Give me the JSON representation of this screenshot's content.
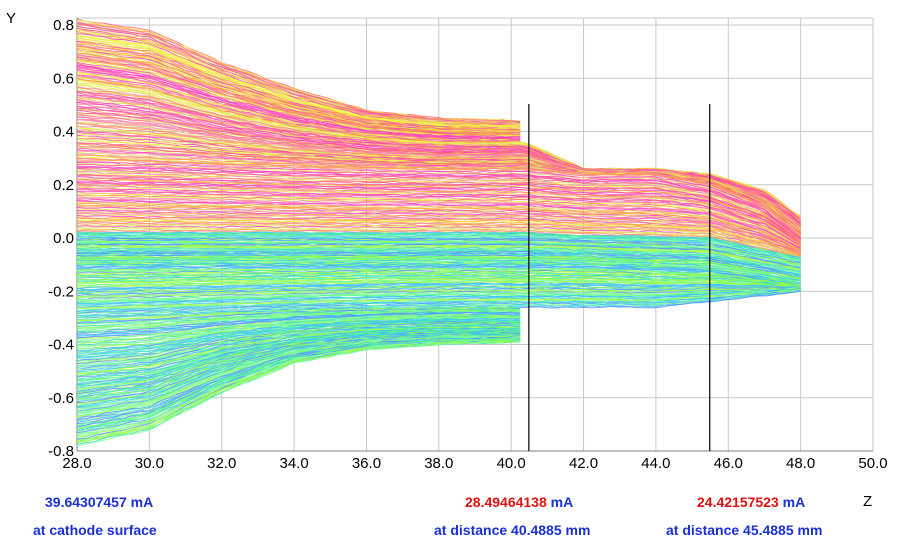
{
  "chart_data": {
    "type": "line",
    "title": "",
    "xlabel": "Z",
    "ylabel": "Y",
    "xlim": [
      28.0,
      50.0
    ],
    "ylim": [
      -0.8,
      0.85
    ],
    "grid": true,
    "x_ticks": [
      "28.0",
      "30.0",
      "32.0",
      "34.0",
      "36.0",
      "38.0",
      "40.0",
      "42.0",
      "44.0",
      "46.0",
      "48.0",
      "50.0"
    ],
    "y_ticks": [
      "-0.8",
      "-0.6",
      "-0.4",
      "-0.2",
      "0.0",
      "0.2",
      "0.4",
      "0.6",
      "0.8"
    ],
    "markers": [
      {
        "z": 40.4885
      },
      {
        "z": 45.4885
      }
    ],
    "trajectory_colors": {
      "upper": [
        "#f0f040",
        "#ffa040",
        "#ff6080",
        "#ff40c0",
        "#ff80a0",
        "#e0e060"
      ],
      "lower": [
        "#40e0c0",
        "#60ff80",
        "#a0ff40",
        "#40c0ff",
        "#6090ff",
        "#80ffa0"
      ]
    },
    "series": [
      {
        "values": [
          [
            28.0,
            0.82
          ],
          [
            30.0,
            0.78
          ],
          [
            32.0,
            0.66
          ],
          [
            34.0,
            0.56
          ],
          [
            36.0,
            0.48
          ],
          [
            38.0,
            0.45
          ],
          [
            40.4,
            0.44
          ]
        ]
      },
      {
        "values": [
          [
            28.0,
            0.6
          ],
          [
            30.0,
            0.56
          ],
          [
            32.0,
            0.48
          ],
          [
            34.0,
            0.42
          ],
          [
            36.0,
            0.38
          ],
          [
            38.0,
            0.36
          ],
          [
            40.4,
            0.36
          ],
          [
            42.0,
            0.26
          ],
          [
            44.0,
            0.26
          ],
          [
            45.5,
            0.24
          ],
          [
            47.0,
            0.18
          ],
          [
            48.2,
            0.06
          ]
        ]
      },
      {
        "values": [
          [
            28.0,
            0.3
          ],
          [
            30.0,
            0.29
          ],
          [
            34.0,
            0.27
          ],
          [
            38.0,
            0.26
          ],
          [
            40.4,
            0.26
          ],
          [
            42.0,
            0.24
          ],
          [
            44.0,
            0.24
          ],
          [
            45.5,
            0.2
          ],
          [
            47.0,
            0.12
          ],
          [
            48.2,
            -0.02
          ]
        ]
      },
      {
        "values": [
          [
            28.0,
            0.02
          ],
          [
            32.0,
            0.02
          ],
          [
            36.0,
            0.02
          ],
          [
            40.4,
            0.02
          ],
          [
            42.0,
            0.01
          ],
          [
            45.5,
            0.0
          ],
          [
            48.2,
            -0.08
          ]
        ]
      },
      {
        "values": [
          [
            28.0,
            -0.1
          ],
          [
            32.0,
            -0.1
          ],
          [
            36.0,
            -0.1
          ],
          [
            40.4,
            -0.1
          ],
          [
            42.0,
            -0.1
          ],
          [
            45.5,
            -0.12
          ],
          [
            48.2,
            -0.18
          ]
        ]
      },
      {
        "values": [
          [
            28.0,
            -0.3
          ],
          [
            30.0,
            -0.29
          ],
          [
            34.0,
            -0.27
          ],
          [
            38.0,
            -0.26
          ],
          [
            40.4,
            -0.26
          ],
          [
            42.0,
            -0.26
          ],
          [
            44.0,
            -0.26
          ],
          [
            45.5,
            -0.24
          ],
          [
            48.0,
            -0.2
          ]
        ]
      },
      {
        "values": [
          [
            28.0,
            -0.55
          ],
          [
            30.0,
            -0.52
          ],
          [
            32.0,
            -0.44
          ],
          [
            34.0,
            -0.39
          ],
          [
            36.0,
            -0.36
          ],
          [
            38.0,
            -0.35
          ],
          [
            40.4,
            -0.35
          ]
        ]
      },
      {
        "values": [
          [
            28.0,
            -0.78
          ],
          [
            30.0,
            -0.72
          ],
          [
            32.0,
            -0.58
          ],
          [
            34.0,
            -0.47
          ],
          [
            36.0,
            -0.42
          ],
          [
            38.0,
            -0.4
          ],
          [
            40.4,
            -0.39
          ]
        ]
      }
    ]
  },
  "readouts": [
    {
      "value": "39.64307457",
      "unit": "mA",
      "value_color": "#1a2fd6",
      "caption": "at  cathode surface"
    },
    {
      "value": "28.49464138",
      "unit": "mA",
      "value_color": "#e01010",
      "caption": "at  distance 40.4885 mm"
    },
    {
      "value": "24.42157523",
      "unit": "mA",
      "value_color": "#e01010",
      "caption": "at  distance 45.4885 mm"
    }
  ],
  "text_color": "#1a2fd6"
}
